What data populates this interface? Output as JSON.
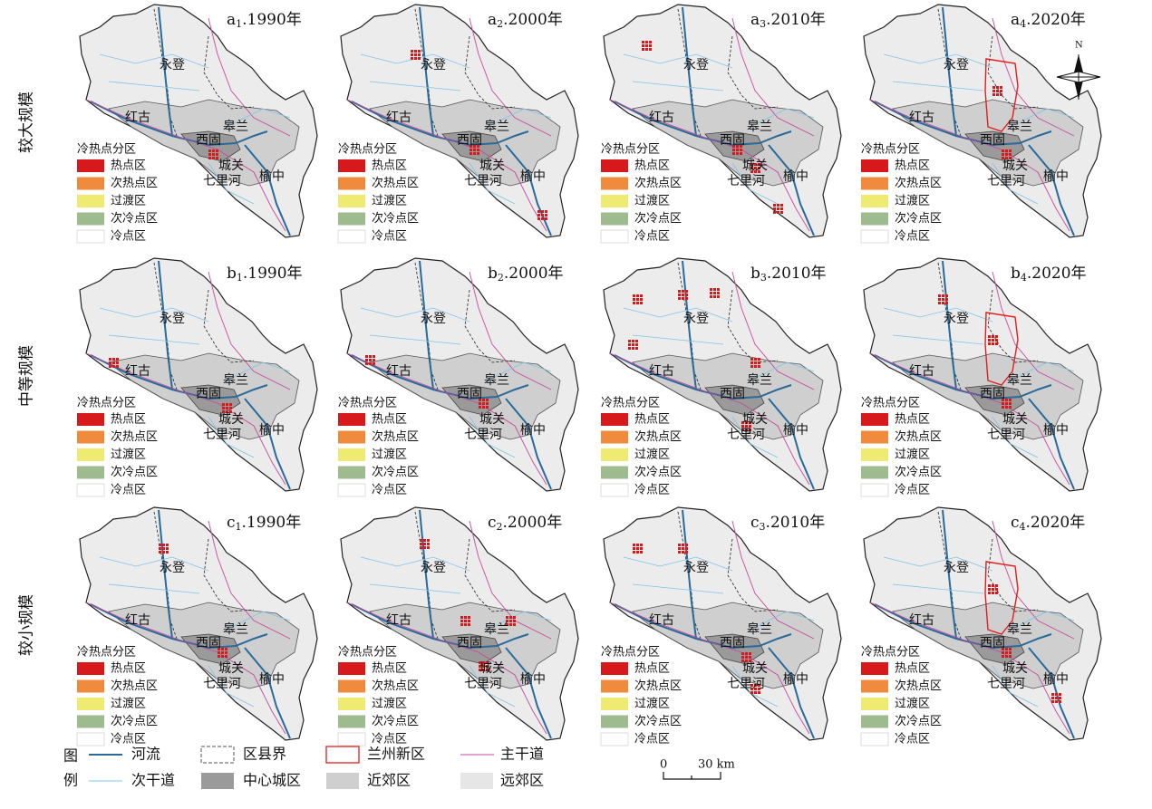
{
  "row_labels": [
    "较大规模",
    "中等规模",
    "较小规模"
  ],
  "panels": [
    {
      "letter": "a",
      "sub": "1",
      "year": ".1990年"
    },
    {
      "letter": "a",
      "sub": "2",
      "year": ".2000年"
    },
    {
      "letter": "a",
      "sub": "3",
      "year": ".2010年"
    },
    {
      "letter": "a",
      "sub": "4",
      "year": ".2020年"
    },
    {
      "letter": "b",
      "sub": "1",
      "year": ".1990年"
    },
    {
      "letter": "b",
      "sub": "2",
      "year": ".2000年"
    },
    {
      "letter": "b",
      "sub": "3",
      "year": ".2010年"
    },
    {
      "letter": "b",
      "sub": "4",
      "year": ".2020年"
    },
    {
      "letter": "c",
      "sub": "1",
      "year": ".1990年"
    },
    {
      "letter": "c",
      "sub": "2",
      "year": ".2000年"
    },
    {
      "letter": "c",
      "sub": "3",
      "year": ".2010年"
    },
    {
      "letter": "c",
      "sub": "4",
      "year": ".2020年"
    }
  ],
  "place_names": [
    "永登",
    "皋兰",
    "红古",
    "西固",
    "城关",
    "七里河",
    "榆中"
  ],
  "panel_legend": {
    "title": "冷热点分区",
    "items": [
      {
        "name": "热点区",
        "color": "#d7191c"
      },
      {
        "name": "次热点区",
        "color": "#f08a3c"
      },
      {
        "name": "过渡区",
        "color": "#eeea72"
      },
      {
        "name": "次冷点区",
        "color": "#9dbb8f"
      },
      {
        "name": "冷点区",
        "color": "#ffffff"
      }
    ]
  },
  "legend": {
    "title_top": "图",
    "title_bottom": "例",
    "items": [
      "河流",
      "区县界",
      "兰州新区",
      "主干道",
      "次干道",
      "中心城区",
      "近郊区",
      "远郊区"
    ]
  },
  "scale_bar": {
    "start": "0",
    "end": "30 km"
  },
  "north": "N"
}
